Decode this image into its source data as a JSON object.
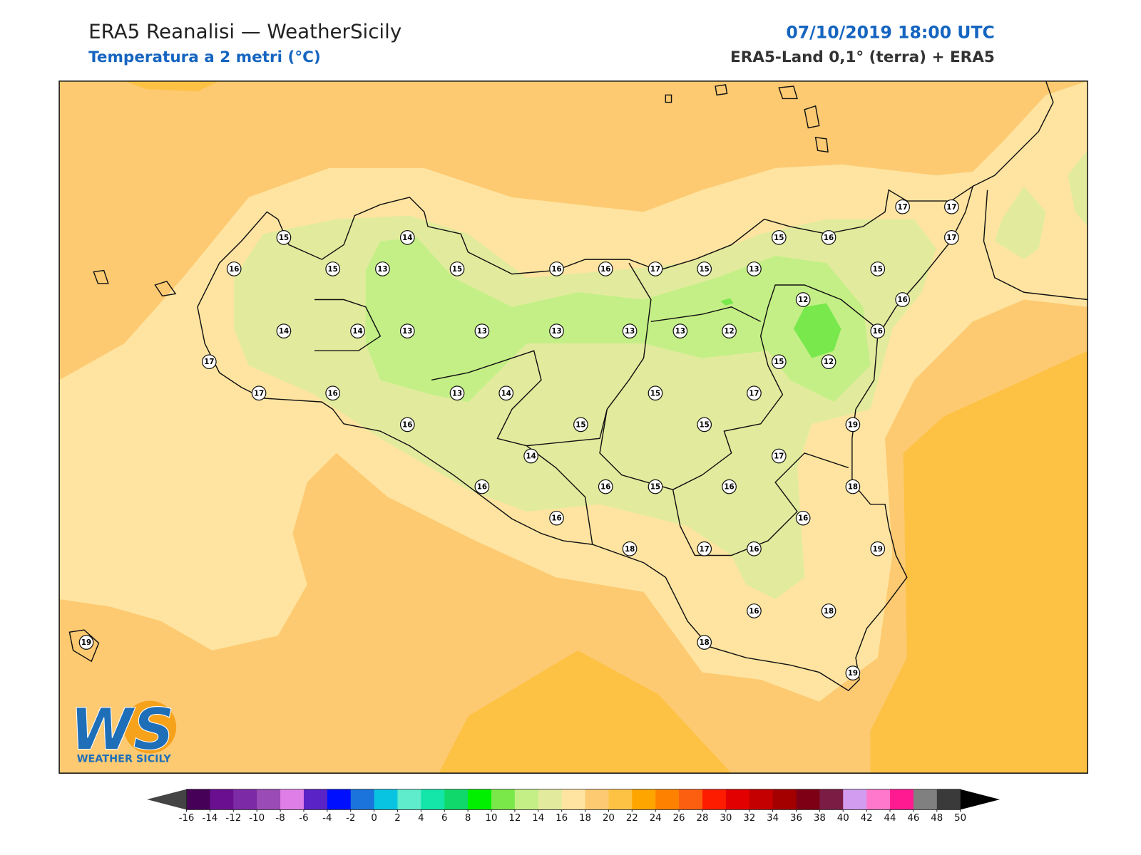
{
  "header": {
    "title": "ERA5 Reanalisi — WeatherSicily",
    "subtitle": "Temperatura a 2 metri (°C)",
    "datetime": "07/10/2019 18:00 UTC",
    "source": "ERA5-Land 0,1° (terra) + ERA5"
  },
  "stations": {
    "values": [
      15,
      14,
      15,
      16,
      17,
      17,
      17,
      16,
      15,
      13,
      15,
      16,
      16,
      17,
      15,
      13,
      15,
      12,
      16,
      14,
      14,
      13,
      13,
      13,
      13,
      13,
      12,
      16,
      17,
      15,
      12,
      17,
      16,
      13,
      14,
      15,
      17,
      16,
      15,
      15,
      19,
      14,
      17,
      16,
      16,
      15,
      16,
      18,
      16,
      16,
      18,
      17,
      16,
      19,
      16,
      18,
      19,
      18,
      19
    ]
  },
  "colorbar": {
    "ticks": [
      -16,
      -14,
      -12,
      -10,
      -8,
      -6,
      -4,
      -2,
      0,
      2,
      4,
      6,
      8,
      10,
      12,
      14,
      16,
      18,
      20,
      22,
      24,
      26,
      28,
      30,
      32,
      34,
      36,
      38,
      40,
      42,
      44,
      46,
      48,
      50
    ],
    "colors": [
      "#470058",
      "#6a0f8f",
      "#7d2aa6",
      "#9a4bb5",
      "#e07ee7",
      "#5a23c6",
      "#0010ff",
      "#1a74db",
      "#09c4e0",
      "#5eeccd",
      "#13e6a8",
      "#10d86a",
      "#00f000",
      "#7be84a",
      "#c4ef86",
      "#e2eb9d",
      "#fee4a0",
      "#fdca72",
      "#fdc244",
      "#ffa500",
      "#fe8200",
      "#fc5f10",
      "#fe1c00",
      "#e30000",
      "#c40000",
      "#a50000",
      "#7d0014",
      "#7b1c45",
      "#d29cf0",
      "#ff78cb",
      "#ff1a91",
      "#808080",
      "#3a3a3a"
    ],
    "under_color": "#444444",
    "over_color": "#000000"
  },
  "logo": {
    "letters": "WS",
    "name": "WEATHER SICILY"
  }
}
